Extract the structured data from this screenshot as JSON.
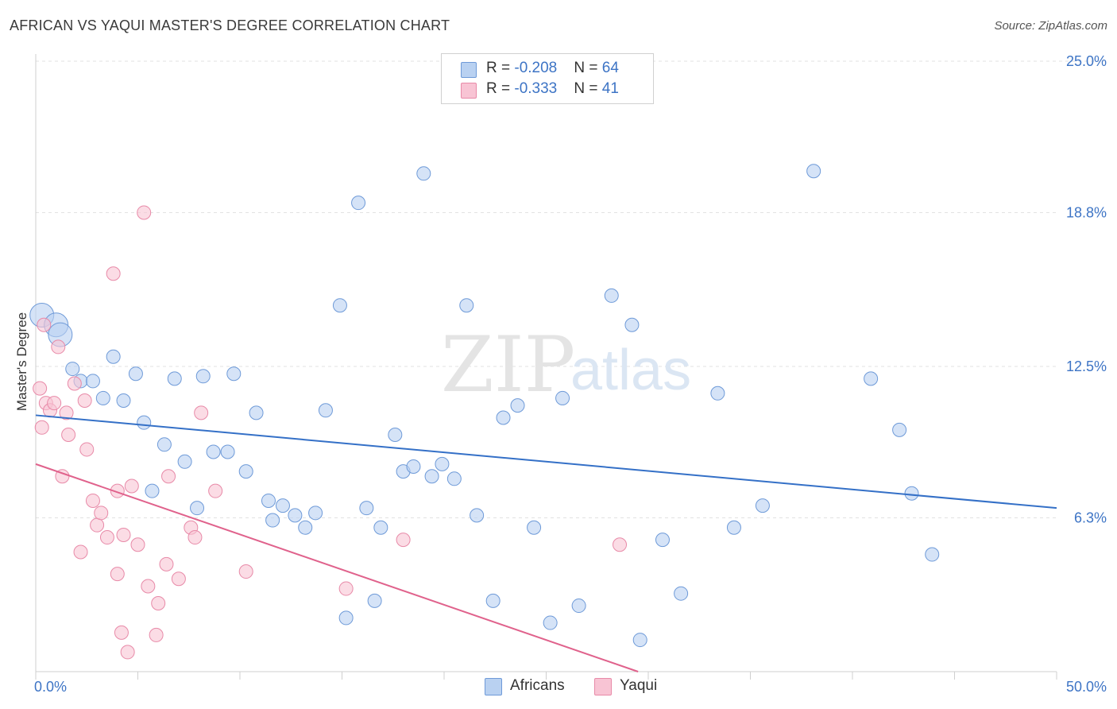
{
  "title": "AFRICAN VS YAQUI MASTER'S DEGREE CORRELATION CHART",
  "source": "Source: ZipAtlas.com",
  "watermark": {
    "zip": "ZIP",
    "atlas": "atlas"
  },
  "legend": {
    "rows": [
      {
        "r_label": "R = ",
        "r_value": "-0.208",
        "n_label": "N = ",
        "n_value": "64"
      },
      {
        "r_label": "R = ",
        "r_value": "-0.333",
        "n_label": "N = ",
        "n_value": "41"
      }
    ]
  },
  "colors": {
    "africans_fill": "#b9d1f1",
    "africans_stroke": "#6e9ad8",
    "africans_line": "#3470c7",
    "yaqui_fill": "#f8c4d4",
    "yaqui_stroke": "#e88aa8",
    "yaqui_line": "#e0628c",
    "tick_text": "#3d74c5",
    "grid": "#e2e2e2"
  },
  "chart_data": {
    "type": "scatter",
    "title": "AFRICAN VS YAQUI MASTER'S DEGREE CORRELATION CHART",
    "xlabel": "",
    "ylabel": "Master's Degree",
    "xlim": [
      0,
      50
    ],
    "ylim": [
      0,
      25
    ],
    "x_tick_labels": [
      "0.0%",
      "50.0%"
    ],
    "y_ticks": [
      6.3,
      12.5,
      18.8,
      25.0
    ],
    "y_tick_labels": [
      "6.3%",
      "12.5%",
      "18.8%",
      "25.0%"
    ],
    "grid": "horizontal dashed",
    "legend_placement": "top-center",
    "series": [
      {
        "name": "Africans",
        "r": -0.208,
        "n": 64,
        "trend": {
          "x": [
            0,
            50
          ],
          "y": [
            10.5,
            6.7
          ]
        },
        "points": [
          {
            "x": 0.3,
            "y": 14.6,
            "big": true
          },
          {
            "x": 1.0,
            "y": 14.2,
            "big": true
          },
          {
            "x": 1.2,
            "y": 13.8,
            "big": true
          },
          {
            "x": 1.8,
            "y": 12.4
          },
          {
            "x": 2.2,
            "y": 11.9
          },
          {
            "x": 2.8,
            "y": 11.9
          },
          {
            "x": 3.3,
            "y": 11.2
          },
          {
            "x": 3.8,
            "y": 12.9
          },
          {
            "x": 4.3,
            "y": 11.1
          },
          {
            "x": 4.9,
            "y": 12.2
          },
          {
            "x": 5.3,
            "y": 10.2
          },
          {
            "x": 5.7,
            "y": 7.4
          },
          {
            "x": 6.3,
            "y": 9.3
          },
          {
            "x": 6.8,
            "y": 12.0
          },
          {
            "x": 7.3,
            "y": 8.6
          },
          {
            "x": 7.9,
            "y": 6.7
          },
          {
            "x": 8.2,
            "y": 12.1
          },
          {
            "x": 8.7,
            "y": 9.0
          },
          {
            "x": 9.4,
            "y": 9.0
          },
          {
            "x": 9.7,
            "y": 12.2
          },
          {
            "x": 10.3,
            "y": 8.2
          },
          {
            "x": 10.8,
            "y": 10.6
          },
          {
            "x": 11.4,
            "y": 7.0
          },
          {
            "x": 11.6,
            "y": 6.2
          },
          {
            "x": 12.1,
            "y": 6.8
          },
          {
            "x": 12.7,
            "y": 6.4
          },
          {
            "x": 13.2,
            "y": 5.9
          },
          {
            "x": 13.7,
            "y": 6.5
          },
          {
            "x": 14.2,
            "y": 10.7
          },
          {
            "x": 14.9,
            "y": 15.0
          },
          {
            "x": 15.2,
            "y": 2.2
          },
          {
            "x": 15.8,
            "y": 19.2
          },
          {
            "x": 16.2,
            "y": 6.7
          },
          {
            "x": 16.6,
            "y": 2.9
          },
          {
            "x": 16.9,
            "y": 5.9
          },
          {
            "x": 17.6,
            "y": 9.7
          },
          {
            "x": 18.0,
            "y": 8.2
          },
          {
            "x": 18.5,
            "y": 8.4
          },
          {
            "x": 19.0,
            "y": 20.4
          },
          {
            "x": 19.4,
            "y": 8.0
          },
          {
            "x": 19.9,
            "y": 8.5
          },
          {
            "x": 20.5,
            "y": 7.9
          },
          {
            "x": 21.1,
            "y": 15.0
          },
          {
            "x": 21.6,
            "y": 6.4
          },
          {
            "x": 22.4,
            "y": 2.9
          },
          {
            "x": 22.9,
            "y": 10.4
          },
          {
            "x": 23.6,
            "y": 10.9
          },
          {
            "x": 24.4,
            "y": 5.9
          },
          {
            "x": 25.2,
            "y": 2.0
          },
          {
            "x": 25.8,
            "y": 11.2
          },
          {
            "x": 26.6,
            "y": 2.7
          },
          {
            "x": 28.2,
            "y": 15.4
          },
          {
            "x": 29.2,
            "y": 14.2
          },
          {
            "x": 29.6,
            "y": 1.3
          },
          {
            "x": 30.7,
            "y": 5.4
          },
          {
            "x": 31.6,
            "y": 3.2
          },
          {
            "x": 33.4,
            "y": 11.4
          },
          {
            "x": 34.2,
            "y": 5.9
          },
          {
            "x": 35.6,
            "y": 6.8
          },
          {
            "x": 38.1,
            "y": 20.5
          },
          {
            "x": 40.9,
            "y": 12.0
          },
          {
            "x": 42.3,
            "y": 9.9
          },
          {
            "x": 42.9,
            "y": 7.3
          },
          {
            "x": 43.9,
            "y": 4.8
          }
        ]
      },
      {
        "name": "Yaqui",
        "r": -0.333,
        "n": 41,
        "trend": {
          "x": [
            0,
            29.5
          ],
          "y": [
            8.5,
            0
          ]
        },
        "points": [
          {
            "x": 0.2,
            "y": 11.6
          },
          {
            "x": 0.3,
            "y": 10.0
          },
          {
            "x": 0.4,
            "y": 14.2
          },
          {
            "x": 0.5,
            "y": 11.0
          },
          {
            "x": 0.7,
            "y": 10.7
          },
          {
            "x": 0.9,
            "y": 11.0
          },
          {
            "x": 1.1,
            "y": 13.3
          },
          {
            "x": 1.3,
            "y": 8.0
          },
          {
            "x": 1.5,
            "y": 10.6
          },
          {
            "x": 1.6,
            "y": 9.7
          },
          {
            "x": 1.9,
            "y": 11.8
          },
          {
            "x": 2.2,
            "y": 4.9
          },
          {
            "x": 2.4,
            "y": 11.1
          },
          {
            "x": 2.5,
            "y": 9.1
          },
          {
            "x": 2.8,
            "y": 7.0
          },
          {
            "x": 3.0,
            "y": 6.0
          },
          {
            "x": 3.2,
            "y": 6.5
          },
          {
            "x": 3.5,
            "y": 5.5
          },
          {
            "x": 3.8,
            "y": 16.3
          },
          {
            "x": 4.0,
            "y": 4.0
          },
          {
            "x": 4.0,
            "y": 7.4
          },
          {
            "x": 4.2,
            "y": 1.6
          },
          {
            "x": 4.3,
            "y": 5.6
          },
          {
            "x": 4.5,
            "y": 0.8
          },
          {
            "x": 4.7,
            "y": 7.6
          },
          {
            "x": 5.0,
            "y": 5.2
          },
          {
            "x": 5.3,
            "y": 18.8
          },
          {
            "x": 5.5,
            "y": 3.5
          },
          {
            "x": 5.9,
            "y": 1.5
          },
          {
            "x": 6.0,
            "y": 2.8
          },
          {
            "x": 6.4,
            "y": 4.4
          },
          {
            "x": 6.5,
            "y": 8.0
          },
          {
            "x": 7.0,
            "y": 3.8
          },
          {
            "x": 7.6,
            "y": 5.9
          },
          {
            "x": 7.8,
            "y": 5.5
          },
          {
            "x": 8.1,
            "y": 10.6
          },
          {
            "x": 8.8,
            "y": 7.4
          },
          {
            "x": 10.3,
            "y": 4.1
          },
          {
            "x": 15.2,
            "y": 3.4
          },
          {
            "x": 18.0,
            "y": 5.4
          },
          {
            "x": 28.6,
            "y": 5.2
          }
        ]
      }
    ]
  },
  "bottom_legend": [
    {
      "label": "Africans"
    },
    {
      "label": "Yaqui"
    }
  ]
}
